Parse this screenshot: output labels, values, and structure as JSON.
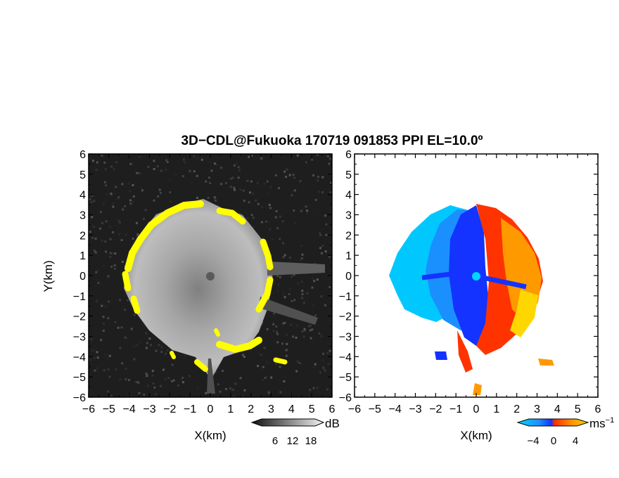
{
  "chart_data": {
    "title": "3D−CDL@Fukuoka 170719 091853 PPI EL=10.0º",
    "panels": [
      {
        "type": "heatmap",
        "name": "left",
        "xlabel": "X(km)",
        "ylabel": "Y(km)",
        "xlim": [
          -6,
          6
        ],
        "ylim": [
          -6,
          6
        ],
        "xticks": [
          "−6",
          "−5",
          "−4",
          "−3",
          "−2",
          "−1",
          "0",
          "1",
          "2",
          "3",
          "4",
          "5",
          "6"
        ],
        "yticks": [
          "−6",
          "−5",
          "−4",
          "−3",
          "−2",
          "−1",
          "0",
          "1",
          "2",
          "3",
          "4",
          "5",
          "6"
        ],
        "colorbar": {
          "unit": "dB",
          "ticks": [
            "6",
            "12",
            "18"
          ],
          "colormap": "grayscale",
          "flag_color": "#ffff00"
        }
      },
      {
        "type": "heatmap",
        "name": "right",
        "xlabel": "X(km)",
        "xlim": [
          -6,
          6
        ],
        "ylim": [
          -6,
          6
        ],
        "xticks": [
          "−6",
          "−5",
          "−4",
          "−3",
          "−2",
          "−1",
          "0",
          "1",
          "2",
          "3",
          "4",
          "5",
          "6"
        ],
        "yticks": [
          "−6",
          "−5",
          "−4",
          "−3",
          "−2",
          "−1",
          "0",
          "1",
          "2",
          "3",
          "4",
          "5",
          "6"
        ],
        "colorbar": {
          "unit": "ms",
          "unit_exp": "−1",
          "ticks": [
            "−4",
            "0",
            "4"
          ],
          "colors": [
            "#00d8ff",
            "#1e90ff",
            "#1433ff",
            "#ff2a00",
            "#ff8c00",
            "#ffd700"
          ]
        }
      }
    ]
  }
}
